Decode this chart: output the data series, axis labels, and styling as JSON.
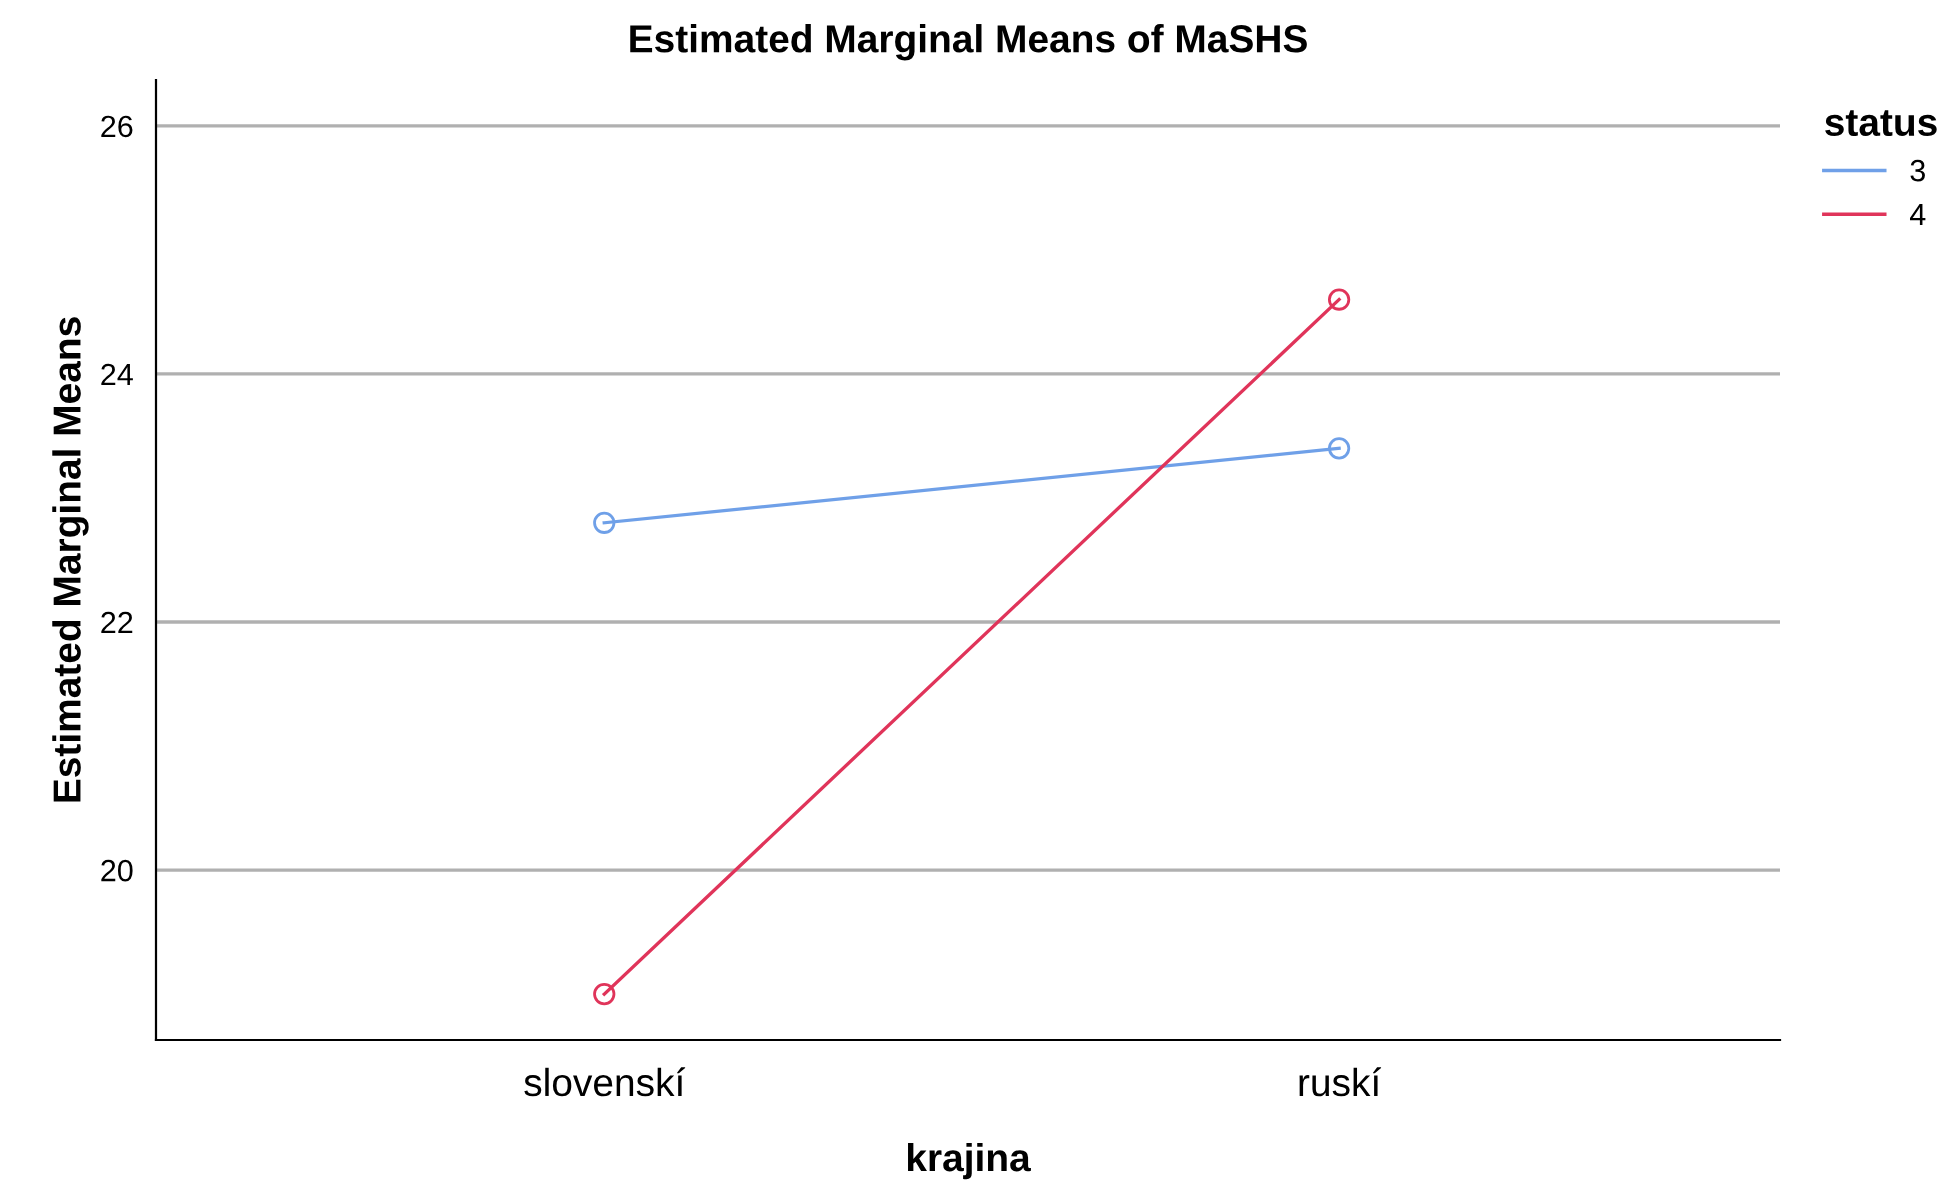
{
  "chart_data": {
    "type": "line",
    "title": "Estimated Marginal Means of MaSHS",
    "xlabel": "krajina",
    "ylabel": "Estimated Marginal Means",
    "categories": [
      "slovenskí",
      "ruskí"
    ],
    "series": [
      {
        "name": "3",
        "color": "#6fa0e8",
        "values": [
          22.8,
          23.4
        ]
      },
      {
        "name": "4",
        "color": "#e0345a",
        "values": [
          19.0,
          24.6
        ]
      }
    ],
    "ylim": [
      18.63,
      26.37
    ],
    "yticks": [
      20,
      22,
      24,
      26
    ],
    "grid": "y",
    "legend": "top right",
    "legend_title": "status",
    "marker": "circle",
    "line_style": "solid"
  }
}
